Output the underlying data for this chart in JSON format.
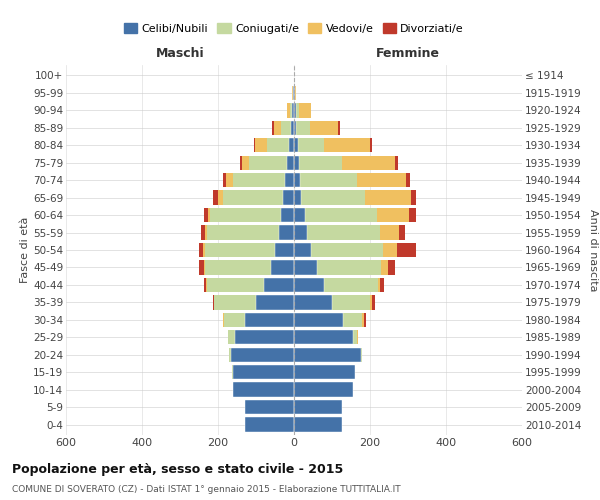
{
  "age_groups": [
    "100+",
    "95-99",
    "90-94",
    "85-89",
    "80-84",
    "75-79",
    "70-74",
    "65-69",
    "60-64",
    "55-59",
    "50-54",
    "45-49",
    "40-44",
    "35-39",
    "30-34",
    "25-29",
    "20-24",
    "15-19",
    "10-14",
    "5-9",
    "0-4"
  ],
  "birth_years": [
    "≤ 1914",
    "1915-1919",
    "1920-1924",
    "1925-1929",
    "1930-1934",
    "1935-1939",
    "1940-1944",
    "1945-1949",
    "1950-1954",
    "1955-1959",
    "1960-1964",
    "1965-1969",
    "1970-1974",
    "1975-1979",
    "1980-1984",
    "1985-1989",
    "1990-1994",
    "1995-1999",
    "2000-2004",
    "2005-2009",
    "2010-2014"
  ],
  "male": {
    "celibi": [
      1,
      2,
      4,
      8,
      12,
      18,
      25,
      28,
      35,
      40,
      50,
      60,
      80,
      100,
      130,
      155,
      165,
      160,
      160,
      130,
      130
    ],
    "coniugati": [
      0,
      1,
      6,
      25,
      60,
      100,
      135,
      160,
      185,
      190,
      185,
      175,
      150,
      110,
      55,
      18,
      5,
      2,
      0,
      0,
      0
    ],
    "vedovi": [
      0,
      1,
      8,
      20,
      30,
      20,
      20,
      12,
      6,
      4,
      4,
      3,
      2,
      1,
      1,
      0,
      0,
      0,
      0,
      0,
      0
    ],
    "divorziati": [
      0,
      0,
      0,
      4,
      4,
      4,
      8,
      12,
      12,
      12,
      12,
      12,
      6,
      3,
      2,
      0,
      0,
      0,
      0,
      0,
      0
    ]
  },
  "female": {
    "nubili": [
      1,
      2,
      4,
      6,
      10,
      12,
      15,
      18,
      28,
      35,
      45,
      60,
      80,
      100,
      130,
      155,
      175,
      160,
      155,
      125,
      125
    ],
    "coniugate": [
      0,
      1,
      10,
      35,
      70,
      115,
      150,
      170,
      190,
      190,
      190,
      170,
      140,
      100,
      50,
      12,
      3,
      0,
      0,
      0,
      0
    ],
    "vedove": [
      0,
      3,
      30,
      75,
      120,
      140,
      130,
      120,
      85,
      50,
      35,
      18,
      6,
      6,
      3,
      2,
      0,
      0,
      0,
      0,
      0
    ],
    "divorziate": [
      0,
      0,
      0,
      6,
      6,
      6,
      10,
      12,
      18,
      18,
      50,
      18,
      12,
      6,
      6,
      0,
      0,
      0,
      0,
      0,
      0
    ]
  },
  "colors": {
    "celibi": "#4472a8",
    "coniugati": "#c5d9a0",
    "vedovi": "#f0c060",
    "divorziati": "#c0392b"
  },
  "title": "Popolazione per età, sesso e stato civile - 2015",
  "subtitle": "COMUNE DI SOVERATO (CZ) - Dati ISTAT 1° gennaio 2015 - Elaborazione TUTTITALIA.IT",
  "xlabel_left": "Maschi",
  "xlabel_right": "Femmine",
  "ylabel_left": "Fasce di età",
  "ylabel_right": "Anni di nascita",
  "xlim": 600,
  "bg_color": "#ffffff",
  "grid_color": "#cccccc"
}
